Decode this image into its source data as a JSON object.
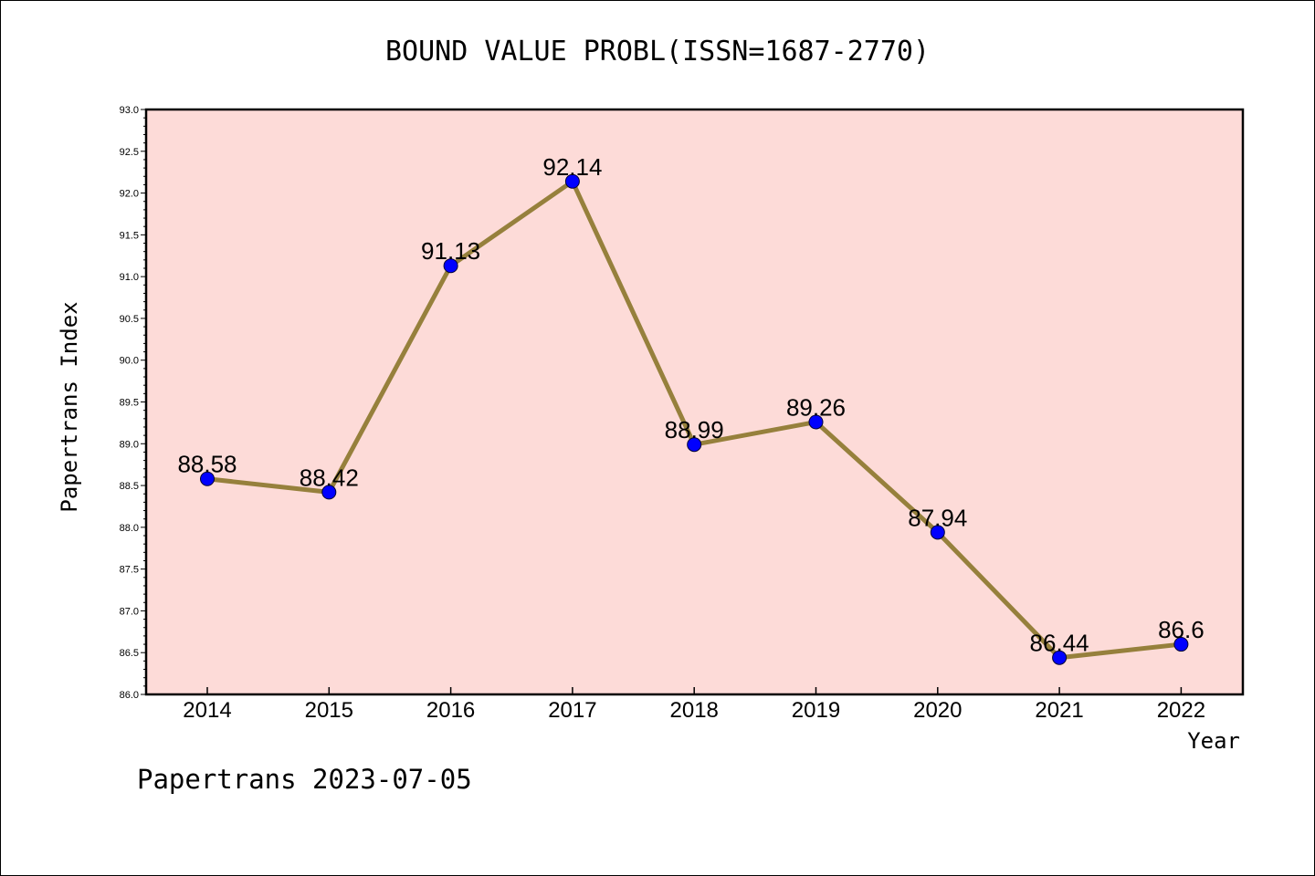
{
  "chart_data": {
    "type": "line",
    "title": "BOUND VALUE PROBL(ISSN=1687-2770)",
    "xlabel": "Year",
    "ylabel": "Papertrans Index",
    "categories": [
      "2014",
      "2015",
      "2016",
      "2017",
      "2018",
      "2019",
      "2020",
      "2021",
      "2022"
    ],
    "values": [
      88.58,
      88.42,
      91.13,
      92.14,
      88.99,
      89.26,
      87.94,
      86.44,
      86.6
    ],
    "data_labels": [
      "88.58",
      "88.42",
      "91.13",
      "92.14",
      "88.99",
      "89.26",
      "87.94",
      "86.44",
      "86.6"
    ],
    "ylim": [
      86.0,
      93.0
    ],
    "yticks": [
      "86.0",
      "86.5",
      "87.0",
      "87.5",
      "88.0",
      "88.5",
      "89.0",
      "89.5",
      "90.0",
      "90.5",
      "91.0",
      "91.5",
      "92.0",
      "92.5",
      "93.0"
    ],
    "grid": false,
    "legend": "none",
    "colors": {
      "plot_background": "#fddbd8",
      "line": "#96803c",
      "marker": "#0000ff"
    }
  },
  "footer": "Papertrans 2023-07-05"
}
